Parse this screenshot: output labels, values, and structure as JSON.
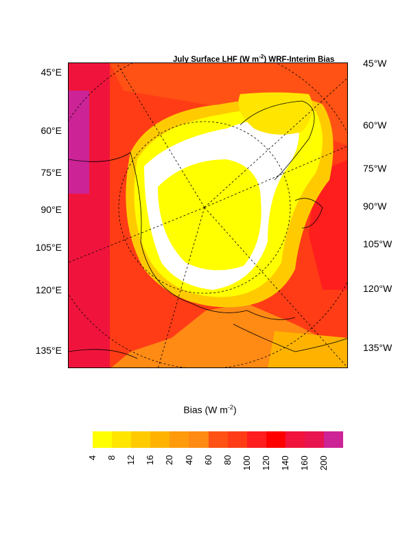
{
  "title": "July Surface LHF (W m-2) WRF-Interim Bias",
  "title_parts": {
    "pre": "July Surface LHF (W m",
    "sup": "-2",
    "post": ") WRF-Interim Bias"
  },
  "left_labels": [
    "45°E",
    "60°E",
    "75°E",
    "90°E",
    "105°E",
    "120°E",
    "135°E"
  ],
  "right_labels": [
    "45°W",
    "60°W",
    "75°W",
    "90°W",
    "105°W",
    "120°W",
    "135°W"
  ],
  "colorbar": {
    "title_pre": "Bias (W m",
    "title_sup": "-2",
    "title_post": ")",
    "levels": [
      "4",
      "8",
      "12",
      "16",
      "20",
      "40",
      "60",
      "80",
      "100",
      "120",
      "140",
      "160",
      "200"
    ],
    "colors": [
      "#ffff00",
      "#ffe500",
      "#ffcb00",
      "#ffb300",
      "#ff9a0c",
      "#ff8a14",
      "#ff5214",
      "#ff3c16",
      "#ff1e1e",
      "#ff0000",
      "#f0143c",
      "#e81450",
      "#cc2396"
    ]
  }
}
